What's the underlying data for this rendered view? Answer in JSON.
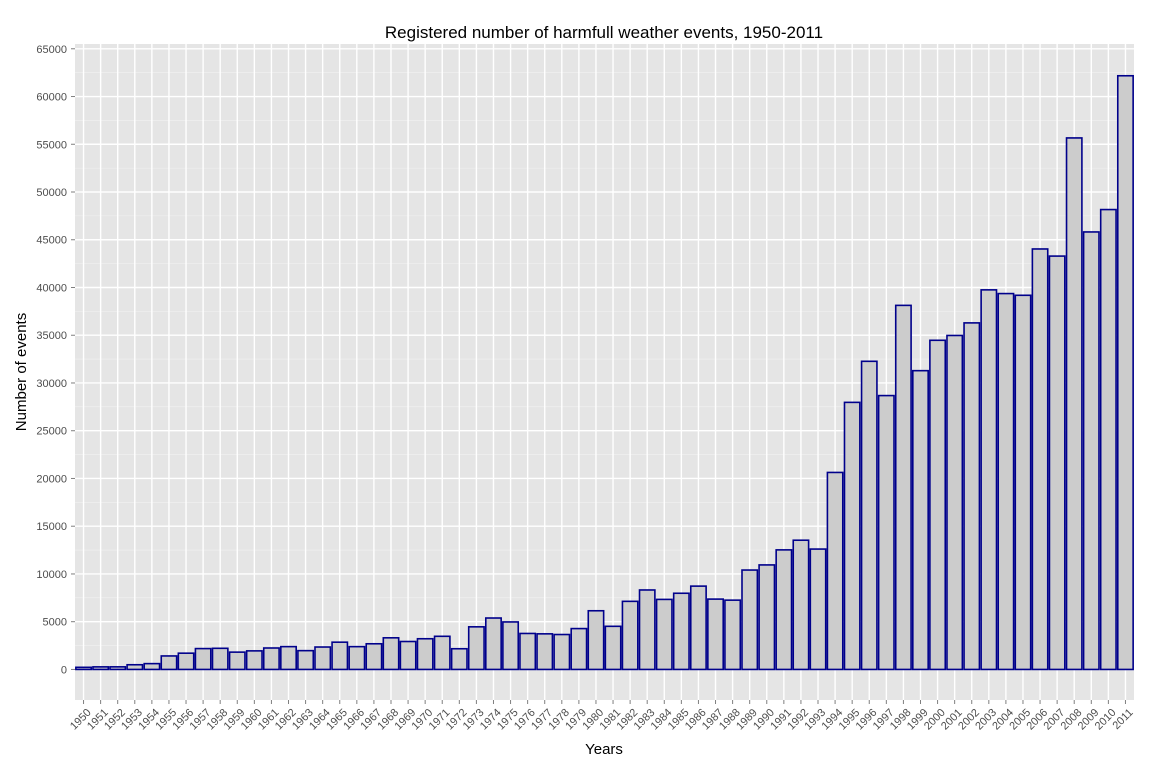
{
  "chart_data": {
    "type": "bar",
    "title": "Registered number of harmfull weather events, 1950-2011",
    "xlabel": "Years",
    "ylabel": "Number of events",
    "ylim": [
      -3200,
      65500
    ],
    "yticks": [
      0,
      5000,
      10000,
      15000,
      20000,
      25000,
      30000,
      35000,
      40000,
      45000,
      50000,
      55000,
      60000,
      65000
    ],
    "grid": true,
    "categories": [
      "1950",
      "1951",
      "1952",
      "1953",
      "1954",
      "1955",
      "1956",
      "1957",
      "1958",
      "1959",
      "1960",
      "1961",
      "1962",
      "1963",
      "1964",
      "1965",
      "1966",
      "1967",
      "1968",
      "1969",
      "1970",
      "1971",
      "1972",
      "1973",
      "1974",
      "1975",
      "1976",
      "1977",
      "1978",
      "1979",
      "1980",
      "1981",
      "1982",
      "1983",
      "1984",
      "1985",
      "1986",
      "1987",
      "1988",
      "1989",
      "1990",
      "1991",
      "1992",
      "1993",
      "1994",
      "1995",
      "1996",
      "1997",
      "1998",
      "1999",
      "2000",
      "2001",
      "2002",
      "2003",
      "2004",
      "2005",
      "2006",
      "2007",
      "2008",
      "2009",
      "2010",
      "2011"
    ],
    "values": [
      223,
      269,
      272,
      492,
      609,
      1413,
      1703,
      2184,
      2213,
      1813,
      1945,
      2246,
      2389,
      1968,
      2348,
      2855,
      2388,
      2688,
      3312,
      2926,
      3215,
      3471,
      2168,
      4463,
      5386,
      4975,
      3768,
      3728,
      3657,
      4279,
      6146,
      4517,
      7132,
      8322,
      7335,
      7979,
      8726,
      7367,
      7257,
      10410,
      10946,
      12522,
      13534,
      12607,
      20631,
      27970,
      32270,
      28680,
      38128,
      31289,
      34471,
      34975,
      36293,
      39752,
      39363,
      39184,
      44034,
      43289,
      55663,
      45817,
      48161,
      62174
    ],
    "colors": {
      "bar_fill": "#cccccc",
      "bar_stroke": "#00008b",
      "panel_background": "#e5e5e5",
      "grid_major": "#ffffff",
      "grid_minor": "#f2f2f2",
      "tick_label": "#4d4d4d"
    }
  }
}
